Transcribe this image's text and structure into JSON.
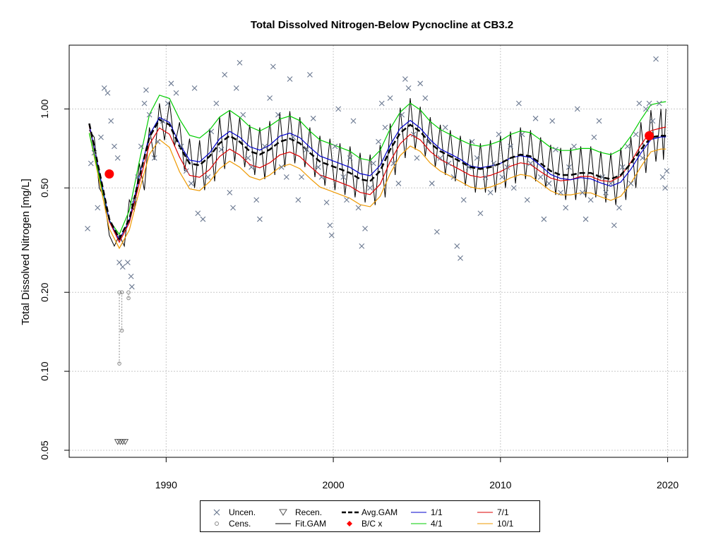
{
  "chart_data": {
    "type": "scatter",
    "title": "Total Dissolved Nitrogen-Below Pycnocline at CB3.2",
    "xlabel": "",
    "ylabel": "Total Dissolved Nitrogen [mg/L]",
    "xlim": [
      1984.2,
      2021.2
    ],
    "ylim": [
      0.047,
      1.75
    ],
    "y_scale": "log",
    "grid": true,
    "x_ticks": [
      1990,
      2000,
      2010,
      2020
    ],
    "y_ticks": [
      0.05,
      0.1,
      0.2,
      0.5,
      1.0
    ],
    "y_tick_labels": [
      "0.05",
      "0.10",
      "0.20",
      "0.50",
      "1.00"
    ],
    "colors": {
      "uncensored": "#6a7890",
      "censored": "#8a8a8a",
      "fit_gam": "#000000",
      "avg_gam": "#000000",
      "bc_points": "#ff0000",
      "day_1_1": "#0000cc",
      "day_4_1": "#00cc00",
      "day_7_1": "#dd0000",
      "day_10_1": "#ee9900"
    },
    "legend": {
      "position": "bottom",
      "items": [
        {
          "label": "Uncen.",
          "symbol": "x",
          "color": "#6a7890"
        },
        {
          "label": "Cens.",
          "symbol": "o",
          "color": "#8a8a8a"
        },
        {
          "label": "Recen.",
          "symbol": "triangle-down",
          "color": "#555555"
        },
        {
          "label": "Fit.GAM",
          "symbol": "line",
          "color": "#000000"
        },
        {
          "label": "Avg.GAM",
          "symbol": "dashed-line",
          "color": "#000000"
        },
        {
          "label": "B/C x",
          "symbol": "diamond",
          "color": "#ff0000"
        },
        {
          "label": "1/1",
          "symbol": "line",
          "color": "#0000cc"
        },
        {
          "label": "4/1",
          "symbol": "line",
          "color": "#00cc00"
        },
        {
          "label": "7/1",
          "symbol": "line",
          "color": "#dd0000"
        },
        {
          "label": "10/1",
          "symbol": "line",
          "color": "#ee9900"
        }
      ]
    },
    "avg_gam": {
      "x": [
        1985.4,
        1986.0,
        1986.6,
        1987.2,
        1987.8,
        1988.4,
        1989.0,
        1989.6,
        1990.2,
        1990.8,
        1991.4,
        1992.0,
        1992.6,
        1993.2,
        1993.8,
        1994.4,
        1995.0,
        1995.6,
        1996.2,
        1996.8,
        1997.4,
        1998.0,
        1998.6,
        1999.2,
        1999.8,
        2000.4,
        2001.0,
        2001.6,
        2002.2,
        2002.8,
        2003.4,
        2004.0,
        2004.6,
        2005.2,
        2005.8,
        2006.4,
        2007.0,
        2007.6,
        2008.2,
        2008.8,
        2009.4,
        2010.0,
        2010.6,
        2011.2,
        2011.8,
        2012.4,
        2013.0,
        2013.6,
        2014.2,
        2014.8,
        2015.4,
        2016.0,
        2016.6,
        2017.2,
        2017.8,
        2018.4,
        2019.0,
        2019.6,
        2019.9
      ],
      "y": [
        0.88,
        0.58,
        0.38,
        0.32,
        0.38,
        0.55,
        0.78,
        0.91,
        0.87,
        0.72,
        0.62,
        0.61,
        0.66,
        0.74,
        0.79,
        0.75,
        0.69,
        0.67,
        0.7,
        0.75,
        0.77,
        0.74,
        0.68,
        0.63,
        0.61,
        0.59,
        0.57,
        0.54,
        0.53,
        0.58,
        0.7,
        0.81,
        0.87,
        0.82,
        0.74,
        0.69,
        0.66,
        0.63,
        0.6,
        0.59,
        0.6,
        0.62,
        0.65,
        0.67,
        0.66,
        0.62,
        0.58,
        0.56,
        0.56,
        0.57,
        0.57,
        0.55,
        0.54,
        0.56,
        0.62,
        0.7,
        0.78,
        0.79,
        0.79
      ]
    },
    "fit_gam_peaks": [
      0.83,
      0.5,
      0.33,
      0.33,
      0.45,
      0.62,
      0.85,
      1.05,
      1.07,
      0.89,
      0.77,
      0.76,
      0.84,
      0.93,
      0.99,
      0.93,
      0.87,
      0.85,
      0.9,
      0.97,
      0.98,
      0.93,
      0.85,
      0.79,
      0.77,
      0.74,
      0.72,
      0.68,
      0.67,
      0.73,
      0.88,
      1.01,
      1.1,
      1.02,
      0.93,
      0.87,
      0.83,
      0.79,
      0.76,
      0.74,
      0.76,
      0.79,
      0.82,
      0.85,
      0.83,
      0.78,
      0.73,
      0.71,
      0.71,
      0.72,
      0.72,
      0.69,
      0.68,
      0.71,
      0.78,
      0.89,
      0.99,
      1.0,
      1.0
    ],
    "fit_gam_troughs": [
      0.78,
      0.46,
      0.3,
      0.3,
      0.41,
      0.49,
      0.64,
      0.76,
      0.72,
      0.58,
      0.5,
      0.49,
      0.53,
      0.59,
      0.63,
      0.6,
      0.56,
      0.54,
      0.56,
      0.6,
      0.62,
      0.6,
      0.55,
      0.51,
      0.49,
      0.47,
      0.46,
      0.44,
      0.43,
      0.46,
      0.56,
      0.65,
      0.7,
      0.66,
      0.6,
      0.56,
      0.53,
      0.51,
      0.48,
      0.48,
      0.48,
      0.5,
      0.52,
      0.54,
      0.53,
      0.5,
      0.47,
      0.45,
      0.45,
      0.46,
      0.46,
      0.44,
      0.43,
      0.45,
      0.5,
      0.57,
      0.63,
      0.64,
      0.64
    ],
    "day_1_1_factors": [
      0.99,
      0.99,
      0.99,
      0.99,
      0.99,
      1.01,
      1.02,
      1.02,
      1.02,
      1.02,
      1.03,
      1.03,
      1.03,
      1.04,
      1.04,
      1.04,
      1.04,
      1.04,
      1.04,
      1.05,
      1.05,
      1.05,
      1.05,
      1.05,
      1.05,
      1.05,
      1.05,
      1.05,
      1.05,
      1.05,
      1.04,
      1.04,
      1.04,
      1.03,
      1.03,
      1.02,
      1.02,
      1.02,
      1.01,
      1.01,
      1.01,
      1.0,
      1.0,
      0.99,
      0.99,
      0.98,
      0.97,
      0.97,
      0.96,
      0.96,
      0.95,
      0.95,
      0.94,
      0.94,
      0.95,
      0.97,
      0.98,
      0.99,
      0.99
    ],
    "day_4_1_factors": [
      0.92,
      0.95,
      0.99,
      1.04,
      1.08,
      1.15,
      1.22,
      1.24,
      1.26,
      1.27,
      1.28,
      1.27,
      1.26,
      1.26,
      1.25,
      1.24,
      1.24,
      1.23,
      1.23,
      1.22,
      1.22,
      1.22,
      1.21,
      1.21,
      1.21,
      1.21,
      1.21,
      1.2,
      1.2,
      1.2,
      1.2,
      1.2,
      1.21,
      1.21,
      1.21,
      1.21,
      1.21,
      1.21,
      1.22,
      1.22,
      1.22,
      1.22,
      1.23,
      1.23,
      1.23,
      1.23,
      1.23,
      1.24,
      1.24,
      1.24,
      1.24,
      1.24,
      1.24,
      1.25,
      1.27,
      1.3,
      1.33,
      1.34,
      1.35
    ],
    "day_7_1_factors": [
      0.98,
      0.98,
      0.98,
      0.97,
      0.97,
      0.95,
      0.94,
      0.93,
      0.92,
      0.91,
      0.9,
      0.9,
      0.89,
      0.89,
      0.89,
      0.89,
      0.89,
      0.89,
      0.89,
      0.89,
      0.89,
      0.89,
      0.89,
      0.89,
      0.89,
      0.89,
      0.89,
      0.89,
      0.89,
      0.89,
      0.9,
      0.91,
      0.92,
      0.93,
      0.93,
      0.93,
      0.93,
      0.93,
      0.93,
      0.93,
      0.93,
      0.93,
      0.93,
      0.93,
      0.93,
      0.93,
      0.94,
      0.95,
      0.96,
      0.97,
      0.97,
      0.97,
      0.98,
      0.99,
      1.01,
      1.04,
      1.06,
      1.07,
      1.08
    ],
    "day_10_1_factors": [
      0.92,
      0.92,
      0.92,
      0.92,
      0.91,
      0.89,
      0.86,
      0.84,
      0.82,
      0.8,
      0.8,
      0.8,
      0.8,
      0.8,
      0.8,
      0.8,
      0.8,
      0.8,
      0.8,
      0.8,
      0.8,
      0.8,
      0.8,
      0.8,
      0.8,
      0.8,
      0.8,
      0.8,
      0.8,
      0.8,
      0.81,
      0.82,
      0.83,
      0.84,
      0.84,
      0.84,
      0.84,
      0.84,
      0.84,
      0.84,
      0.84,
      0.84,
      0.84,
      0.84,
      0.84,
      0.84,
      0.84,
      0.84,
      0.84,
      0.84,
      0.84,
      0.84,
      0.83,
      0.83,
      0.84,
      0.86,
      0.88,
      0.89,
      0.89
    ],
    "bc_points": [
      {
        "x": 1986.6,
        "y": 0.565
      },
      {
        "x": 2018.9,
        "y": 0.79
      }
    ],
    "censored": [
      {
        "x": 1987.2,
        "low": 0.107,
        "high": 0.2
      },
      {
        "x": 1987.35,
        "low": 0.143,
        "high": 0.2
      },
      {
        "x": 1987.75,
        "low": 0.19,
        "high": 0.2
      }
    ],
    "recensored": [
      {
        "x": 1987.1,
        "y": 0.054
      },
      {
        "x": 1987.25,
        "y": 0.054
      },
      {
        "x": 1987.4,
        "y": 0.054
      },
      {
        "x": 1987.55,
        "y": 0.054
      }
    ],
    "uncensored_points": [
      [
        1985.3,
        0.35
      ],
      [
        1985.5,
        0.62
      ],
      [
        1985.7,
        0.68
      ],
      [
        1985.9,
        0.42
      ],
      [
        1986.1,
        0.78
      ],
      [
        1986.3,
        1.2
      ],
      [
        1986.5,
        1.15
      ],
      [
        1986.7,
        0.9
      ],
      [
        1986.9,
        0.72
      ],
      [
        1987.1,
        0.65
      ],
      [
        1987.2,
        0.26
      ],
      [
        1987.4,
        0.25
      ],
      [
        1987.7,
        0.26
      ],
      [
        1987.9,
        0.23
      ],
      [
        1987.95,
        0.21
      ],
      [
        1988.1,
        0.45
      ],
      [
        1988.3,
        0.55
      ],
      [
        1988.5,
        0.72
      ],
      [
        1988.7,
        1.05
      ],
      [
        1988.8,
        1.18
      ],
      [
        1989.0,
        0.95
      ],
      [
        1989.3,
        0.65
      ],
      [
        1989.5,
        0.75
      ],
      [
        1989.8,
        0.9
      ],
      [
        1990.1,
        1.05
      ],
      [
        1990.3,
        1.25
      ],
      [
        1990.6,
        1.15
      ],
      [
        1990.9,
        0.72
      ],
      [
        1991.2,
        0.58
      ],
      [
        1991.5,
        0.52
      ],
      [
        1991.7,
        1.2
      ],
      [
        1991.9,
        0.4
      ],
      [
        1992.2,
        0.38
      ],
      [
        1992.5,
        0.55
      ],
      [
        1992.7,
        0.82
      ],
      [
        1993.0,
        1.05
      ],
      [
        1993.3,
        0.7
      ],
      [
        1993.5,
        1.35
      ],
      [
        1993.8,
        0.48
      ],
      [
        1994.0,
        0.42
      ],
      [
        1994.2,
        1.2
      ],
      [
        1994.4,
        1.5
      ],
      [
        1994.6,
        0.95
      ],
      [
        1994.9,
        0.65
      ],
      [
        1995.1,
        0.6
      ],
      [
        1995.4,
        0.45
      ],
      [
        1995.6,
        0.38
      ],
      [
        1995.9,
        0.72
      ],
      [
        1996.2,
        1.1
      ],
      [
        1996.4,
        1.45
      ],
      [
        1996.7,
        0.95
      ],
      [
        1996.9,
        0.6
      ],
      [
        1997.2,
        0.55
      ],
      [
        1997.4,
        1.3
      ],
      [
        1997.6,
        0.78
      ],
      [
        1997.9,
        0.45
      ],
      [
        1998.1,
        0.55
      ],
      [
        1998.4,
        0.7
      ],
      [
        1998.6,
        1.35
      ],
      [
        1998.8,
        0.92
      ],
      [
        1999.1,
        0.6
      ],
      [
        1999.3,
        0.55
      ],
      [
        1999.6,
        0.44
      ],
      [
        1999.8,
        0.36
      ],
      [
        1999.9,
        0.33
      ],
      [
        2000.1,
        0.72
      ],
      [
        2000.3,
        1.0
      ],
      [
        2000.6,
        0.55
      ],
      [
        2000.8,
        0.45
      ],
      [
        2001.0,
        0.65
      ],
      [
        2001.2,
        0.9
      ],
      [
        2001.5,
        0.42
      ],
      [
        2001.7,
        0.3
      ],
      [
        2001.9,
        0.35
      ],
      [
        2002.2,
        0.5
      ],
      [
        2002.4,
        0.62
      ],
      [
        2002.7,
        0.75
      ],
      [
        2002.9,
        1.05
      ],
      [
        2003.1,
        0.85
      ],
      [
        2003.4,
        1.1
      ],
      [
        2003.6,
        0.62
      ],
      [
        2003.9,
        0.52
      ],
      [
        2004.1,
        0.95
      ],
      [
        2004.3,
        1.3
      ],
      [
        2004.5,
        1.2
      ],
      [
        2004.8,
        0.8
      ],
      [
        2005.0,
        0.65
      ],
      [
        2005.2,
        1.25
      ],
      [
        2005.5,
        1.1
      ],
      [
        2005.7,
        0.75
      ],
      [
        2005.9,
        0.52
      ],
      [
        2006.2,
        0.34
      ],
      [
        2006.4,
        0.65
      ],
      [
        2006.7,
        0.85
      ],
      [
        2006.9,
        0.62
      ],
      [
        2007.2,
        0.55
      ],
      [
        2007.4,
        0.3
      ],
      [
        2007.6,
        0.27
      ],
      [
        2007.8,
        0.45
      ],
      [
        2008.1,
        0.6
      ],
      [
        2008.3,
        0.75
      ],
      [
        2008.6,
        0.65
      ],
      [
        2008.8,
        0.4
      ],
      [
        2009.1,
        0.55
      ],
      [
        2009.4,
        0.48
      ],
      [
        2009.6,
        0.62
      ],
      [
        2009.9,
        0.8
      ],
      [
        2010.1,
        0.55
      ],
      [
        2010.4,
        0.6
      ],
      [
        2010.6,
        0.72
      ],
      [
        2010.8,
        0.5
      ],
      [
        2011.1,
        1.05
      ],
      [
        2011.3,
        0.8
      ],
      [
        2011.6,
        0.45
      ],
      [
        2011.8,
        0.62
      ],
      [
        2012.1,
        0.92
      ],
      [
        2012.4,
        0.55
      ],
      [
        2012.6,
        0.38
      ],
      [
        2012.9,
        0.52
      ],
      [
        2013.1,
        0.9
      ],
      [
        2013.3,
        0.7
      ],
      [
        2013.6,
        0.48
      ],
      [
        2013.9,
        0.42
      ],
      [
        2014.1,
        0.6
      ],
      [
        2014.4,
        0.72
      ],
      [
        2014.6,
        1.0
      ],
      [
        2014.9,
        0.48
      ],
      [
        2015.1,
        0.38
      ],
      [
        2015.4,
        0.45
      ],
      [
        2015.6,
        0.78
      ],
      [
        2015.9,
        0.9
      ],
      [
        2016.1,
        0.55
      ],
      [
        2016.3,
        0.48
      ],
      [
        2016.6,
        0.52
      ],
      [
        2016.8,
        0.36
      ],
      [
        2017.1,
        0.42
      ],
      [
        2017.3,
        0.6
      ],
      [
        2017.6,
        0.72
      ],
      [
        2017.8,
        0.52
      ],
      [
        2018.1,
        0.8
      ],
      [
        2018.3,
        1.05
      ],
      [
        2018.5,
        0.65
      ],
      [
        2018.7,
        1.0
      ],
      [
        2018.9,
        1.05
      ],
      [
        2019.1,
        0.9
      ],
      [
        2019.3,
        1.55
      ],
      [
        2019.5,
        1.05
      ],
      [
        2019.7,
        0.55
      ],
      [
        2019.85,
        0.5
      ],
      [
        2019.95,
        0.58
      ]
    ]
  }
}
